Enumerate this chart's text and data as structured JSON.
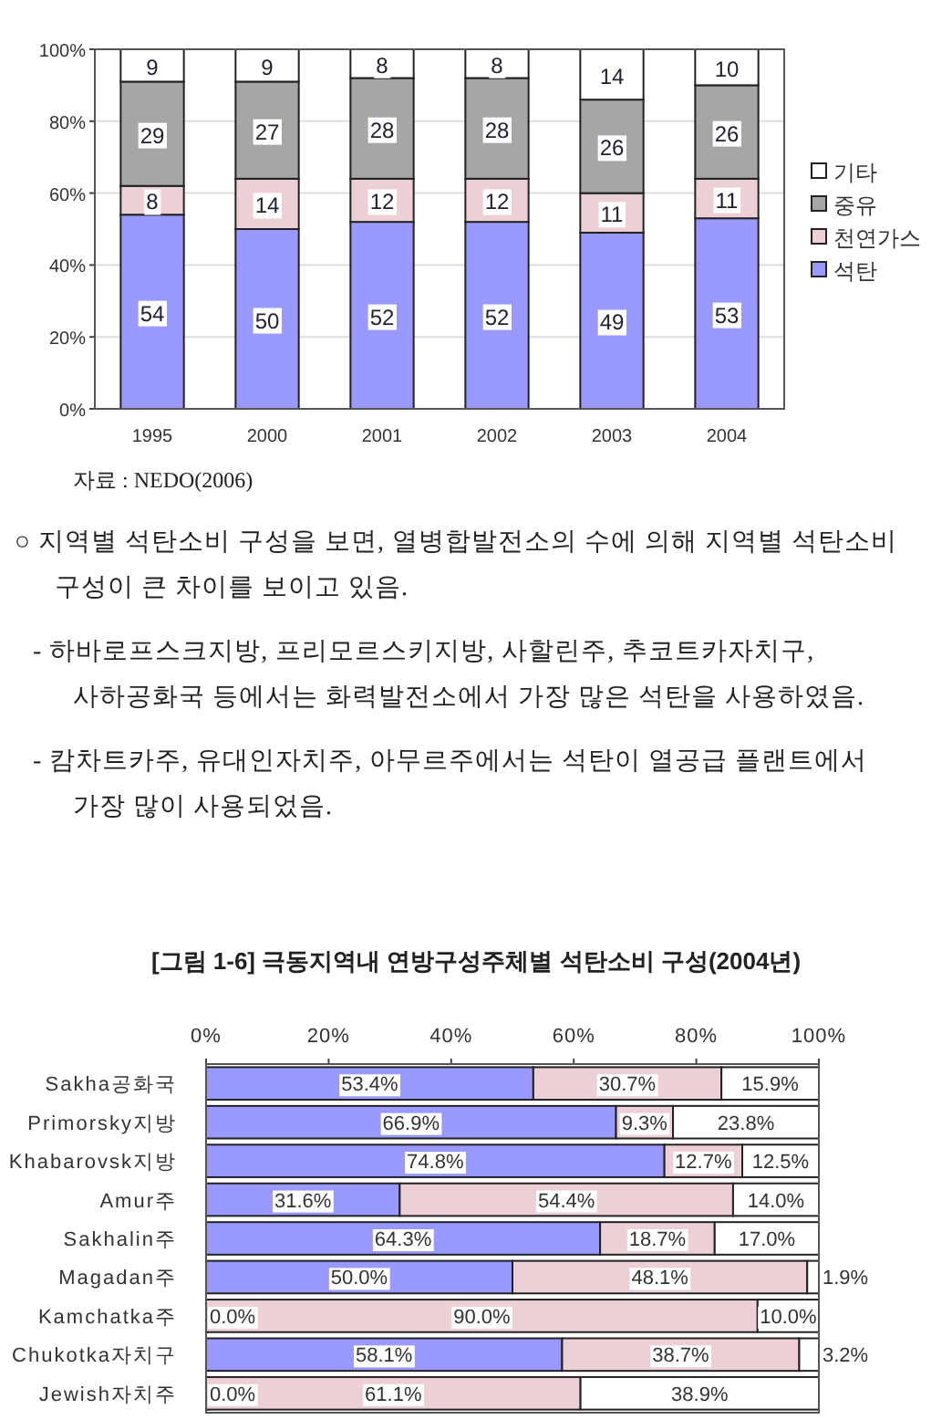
{
  "chart_data": [
    {
      "type": "bar",
      "stacked": true,
      "categories": [
        "1995",
        "2000",
        "2001",
        "2002",
        "2003",
        "2004"
      ],
      "series": [
        {
          "name": "석탄",
          "color": "#9999ff",
          "values": [
            54,
            50,
            52,
            52,
            49,
            53
          ]
        },
        {
          "name": "천연가스",
          "color": "#ecd0d6",
          "values": [
            8,
            14,
            12,
            12,
            11,
            11
          ]
        },
        {
          "name": "중유",
          "color": "#a6a6a6",
          "values": [
            29,
            27,
            28,
            28,
            26,
            26
          ]
        },
        {
          "name": "기타",
          "color": "#ffffff",
          "values": [
            9,
            9,
            8,
            8,
            14,
            10
          ]
        }
      ],
      "data_labels": true,
      "ylim": [
        0,
        100
      ],
      "yticks": [
        {
          "value": 0,
          "label": "0%"
        },
        {
          "value": 20,
          "label": "20%"
        },
        {
          "value": 40,
          "label": "40%"
        },
        {
          "value": 60,
          "label": "60%"
        },
        {
          "value": 80,
          "label": "80%"
        },
        {
          "value": 100,
          "label": "100%"
        }
      ],
      "grid": "y",
      "legend": "right",
      "annotations": [
        "자료 : NEDO(2006)",
        "○ 지역별 석탄소비 구성을 보면, 열병합발전소의 수에 의해 지역별 석탄소비 구성이 큰 차이를 보이고 있음.",
        "- 하바로프스크지방, 프리모르스키지방, 사할린주, 추코트카자치구, 사하공화국 등에서는 화력발전소에서 가장 많은 석탄을 사용하였음.",
        "- 캄차트카주, 유대인자치주, 아무르주에서는 석탄이 열공급 플랜트에서 가장 많이 사용되었음."
      ]
    },
    {
      "type": "bar",
      "stacked": true,
      "orientation": "horizontal",
      "title": "[그림 1-6] 극동지역내 연방구성주체별 석탄소비 구성(2004년)",
      "categories": [
        "Sakha공화국",
        "Primorsky지방",
        "Khabarovsk지방",
        "Amur주",
        "Sakhalin주",
        "Magadan주",
        "Kamchatka주",
        "Chukotka자치구",
        "Jewish자치주"
      ],
      "series": [
        {
          "color": "#9999ff",
          "values": [
            53.4,
            66.9,
            74.8,
            31.6,
            64.3,
            50.0,
            0.0,
            58.1,
            0.0
          ],
          "value_labels": [
            "53.4%",
            "66.9%",
            "74.8%",
            "31.6%",
            "64.3%",
            "50.0%",
            "0.0%",
            "58.1%",
            "0.0%"
          ]
        },
        {
          "color": "#ecd0d6",
          "values": [
            30.7,
            9.3,
            12.7,
            54.4,
            18.7,
            48.1,
            90.0,
            38.7,
            61.1
          ],
          "value_labels": [
            "30.7%",
            "9.3%",
            "12.7%",
            "54.4%",
            "18.7%",
            "48.1%",
            "90.0%",
            "38.7%",
            "61.1%"
          ]
        },
        {
          "color": "#ffffff",
          "values": [
            15.9,
            23.8,
            12.5,
            14.0,
            17.0,
            1.9,
            10.0,
            3.2,
            38.9
          ],
          "value_labels": [
            "15.9%",
            "23.8%",
            "12.5%",
            "14.0%",
            "17.0%",
            "1.9%",
            "10.0%",
            "3.2%",
            "38.9%"
          ]
        }
      ],
      "xlim": [
        0,
        100
      ],
      "xticks": [
        {
          "value": 0,
          "label": "0%"
        },
        {
          "value": 20,
          "label": "20%"
        },
        {
          "value": 40,
          "label": "40%"
        },
        {
          "value": 60,
          "label": "60%"
        },
        {
          "value": 80,
          "label": "80%"
        },
        {
          "value": 100,
          "label": "100%"
        }
      ]
    }
  ]
}
